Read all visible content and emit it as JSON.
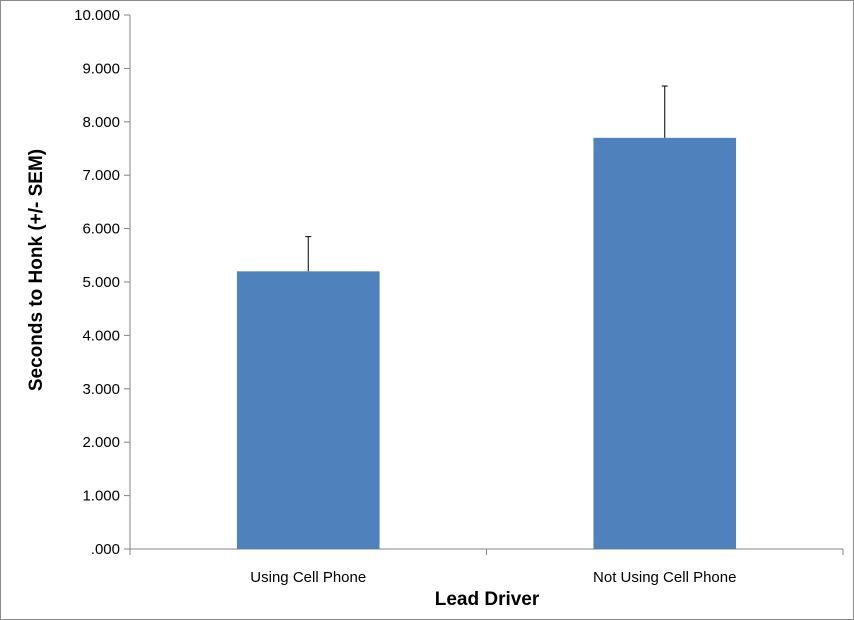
{
  "chart_data": {
    "type": "bar",
    "title": "",
    "xlabel": "Lead Driver",
    "ylabel": "Seconds to Honk (+/- SEM)",
    "categories": [
      "Using Cell Phone",
      "Not Using Cell Phone"
    ],
    "values": [
      5.2,
      7.7
    ],
    "error_plus": [
      0.65,
      0.97
    ],
    "ylim": [
      0,
      10
    ],
    "yticks": [
      0,
      1,
      2,
      3,
      4,
      5,
      6,
      7,
      8,
      9,
      10
    ],
    "ytick_labels": [
      ".000",
      "1.000",
      "2.000",
      "3.000",
      "4.000",
      "5.000",
      "6.000",
      "7.000",
      "8.000",
      "9.000",
      "10.000"
    ],
    "grid": false,
    "legend": "none",
    "bar_color": "#4F81BD"
  }
}
